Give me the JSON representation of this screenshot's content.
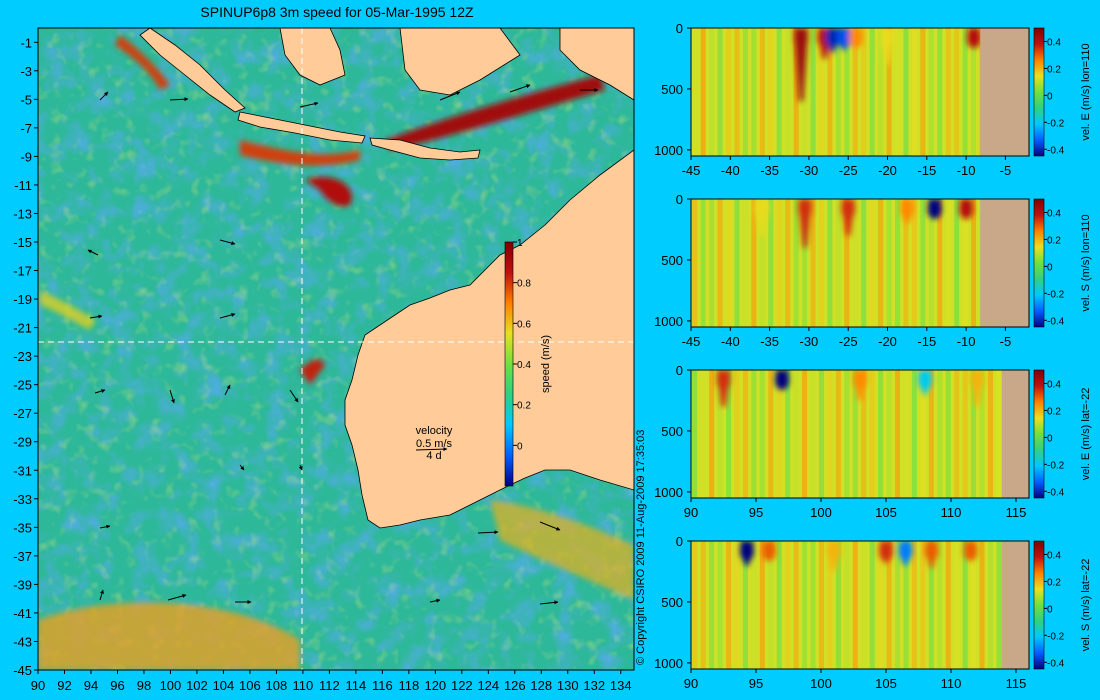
{
  "title": "SPINUP6p8 3m speed for 05-Mar-1995 12Z",
  "copyright": "© Copyright CSIRO 2009  11-Aug-2009 17:35:03",
  "colors": {
    "background": "#00ccff",
    "land": "#ffcc99",
    "seabed": "#c8a888",
    "colormap": [
      "#000080",
      "#0060ff",
      "#00c8ff",
      "#30d080",
      "#70e040",
      "#e8e020",
      "#ff8000",
      "#c01010",
      "#800000"
    ]
  },
  "chart_data": [
    {
      "type": "heatmap",
      "name": "map",
      "variable": "speed (m/s)",
      "x_ticks": [
        90,
        92,
        94,
        96,
        98,
        100,
        102,
        104,
        106,
        108,
        110,
        112,
        114,
        116,
        118,
        120,
        122,
        124,
        126,
        128,
        130,
        132,
        134
      ],
      "y_ticks": [
        -1,
        -3,
        -5,
        -7,
        -9,
        -11,
        -13,
        -15,
        -17,
        -19,
        -21,
        -23,
        -25,
        -27,
        -29,
        -31,
        -33,
        -35,
        -37,
        -39,
        -41,
        -43,
        -45
      ],
      "xlim": [
        90,
        135
      ],
      "ylim": [
        -45,
        0
      ],
      "section_lon": 110,
      "section_lat": -22,
      "colorbar": {
        "label": "speed (m/s)",
        "ticks": [
          "0",
          "0.2",
          "0.4",
          "0.6",
          "0.8",
          "1"
        ],
        "range": [
          -0.2,
          1
        ]
      },
      "legend": {
        "title": "velocity",
        "speed": "0.5 m/s",
        "duration": "4 d"
      }
    },
    {
      "type": "heatmap",
      "name": "section-1",
      "colorbar_label": "vel. E (m/s) lon=110",
      "x_ticks": [
        "-45",
        "-40",
        "-35",
        "-30",
        "-25",
        "-20",
        "-15",
        "-10",
        "-5"
      ],
      "xlim": [
        -45,
        -2
      ],
      "y_ticks": [
        "0",
        "500",
        "1000"
      ],
      "ylim": [
        1050,
        0
      ],
      "colorbar_ticks": [
        "0.4",
        "0.2",
        "0",
        "-0.2",
        "-0.4"
      ],
      "range": [
        -0.45,
        0.5
      ],
      "land_from": -8.2,
      "features": [
        {
          "x": -31,
          "depth": 600,
          "v": 0.45
        },
        {
          "x": -28,
          "depth": 250,
          "v": 0.4
        },
        {
          "x": -27,
          "depth": 200,
          "v": -0.4
        },
        {
          "x": -25.5,
          "depth": 180,
          "v": -0.35
        },
        {
          "x": -24,
          "depth": 150,
          "v": 0.25
        },
        {
          "x": -20,
          "depth": 300,
          "v": 0.15
        },
        {
          "x": -9,
          "depth": 120,
          "v": 0.4
        }
      ]
    },
    {
      "type": "heatmap",
      "name": "section-2",
      "colorbar_label": "vel. S (m/s) lon=110",
      "x_ticks": [
        "-45",
        "-40",
        "-35",
        "-30",
        "-25",
        "-20",
        "-15",
        "-10",
        "-5"
      ],
      "xlim": [
        -45,
        -2
      ],
      "y_ticks": [
        "0",
        "500",
        "1000"
      ],
      "ylim": [
        1050,
        0
      ],
      "colorbar_ticks": [
        "0.4",
        "0.2",
        "0",
        "-0.2",
        "-0.4"
      ],
      "range": [
        -0.45,
        0.5
      ],
      "land_from": -8.2,
      "features": [
        {
          "x": -30.5,
          "depth": 400,
          "v": 0.35
        },
        {
          "x": -25,
          "depth": 300,
          "v": 0.35
        },
        {
          "x": -17.5,
          "depth": 200,
          "v": 0.25
        },
        {
          "x": -14,
          "depth": 150,
          "v": -0.45
        },
        {
          "x": -10,
          "depth": 150,
          "v": 0.4
        },
        {
          "x": -36,
          "depth": 300,
          "v": 0.15
        }
      ]
    },
    {
      "type": "heatmap",
      "name": "section-3",
      "colorbar_label": "vel. E (m/s) lat=-22",
      "x_ticks": [
        "90",
        "95",
        "100",
        "105",
        "110",
        "115"
      ],
      "xlim": [
        90,
        116
      ],
      "y_ticks": [
        "0",
        "500",
        "1000"
      ],
      "ylim": [
        1050,
        0
      ],
      "colorbar_ticks": [
        "0.4",
        "0.2",
        "0",
        "-0.2",
        "-0.4"
      ],
      "range": [
        -0.45,
        0.5
      ],
      "land_from": 113.9,
      "features": [
        {
          "x": 92.5,
          "depth": 300,
          "v": 0.35
        },
        {
          "x": 97,
          "depth": 150,
          "v": -0.45
        },
        {
          "x": 103,
          "depth": 250,
          "v": 0.25
        },
        {
          "x": 108,
          "depth": 200,
          "v": -0.2
        },
        {
          "x": 112,
          "depth": 300,
          "v": 0.2
        }
      ]
    },
    {
      "type": "heatmap",
      "name": "section-4",
      "colorbar_label": "vel. S (m/s) lat=-22",
      "x_ticks": [
        "90",
        "95",
        "100",
        "105",
        "110",
        "115"
      ],
      "xlim": [
        90,
        116
      ],
      "y_ticks": [
        "0",
        "500",
        "1000"
      ],
      "ylim": [
        1050,
        0
      ],
      "colorbar_ticks": [
        "0.4",
        "0.2",
        "0",
        "-0.2",
        "-0.4"
      ],
      "range": [
        -0.45,
        0.5
      ],
      "land_from": 113.9,
      "features": [
        {
          "x": 94.3,
          "depth": 200,
          "v": -0.45
        },
        {
          "x": 96,
          "depth": 150,
          "v": 0.3
        },
        {
          "x": 101,
          "depth": 250,
          "v": 0.2
        },
        {
          "x": 105,
          "depth": 180,
          "v": 0.35
        },
        {
          "x": 106.5,
          "depth": 200,
          "v": -0.3
        },
        {
          "x": 108.5,
          "depth": 220,
          "v": 0.3
        },
        {
          "x": 111.5,
          "depth": 150,
          "v": 0.3
        }
      ]
    }
  ]
}
